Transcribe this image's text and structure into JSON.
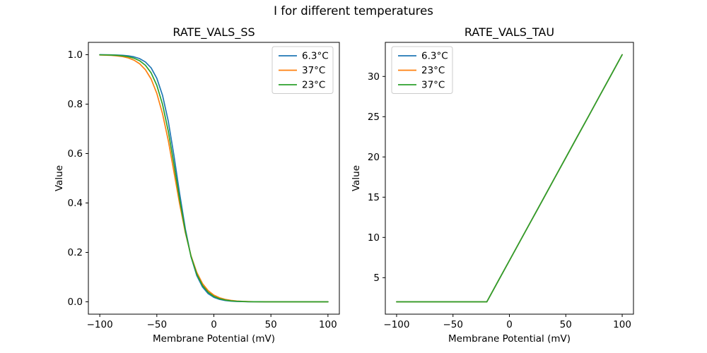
{
  "figure": {
    "suptitle": "I for different temperatures",
    "background": "#ffffff",
    "text_color": "#000000"
  },
  "chart_data": [
    {
      "type": "line",
      "title": "RATE_VALS_SS",
      "xlabel": "Membrane Potential (mV)",
      "ylabel": "Value",
      "xlim": [
        -110,
        110
      ],
      "ylim": [
        -0.05,
        1.05
      ],
      "xticks": [
        -100,
        -50,
        0,
        50,
        100
      ],
      "xtick_labels": [
        "−100",
        "−50",
        "0",
        "50",
        "100"
      ],
      "yticks": [
        0.0,
        0.2,
        0.4,
        0.6,
        0.8,
        1.0
      ],
      "ytick_labels": [
        "0.0",
        "0.2",
        "0.4",
        "0.6",
        "0.8",
        "1.0"
      ],
      "grid": false,
      "legend_position": "upper-right",
      "x": [
        -100,
        -95,
        -90,
        -85,
        -80,
        -75,
        -70,
        -65,
        -60,
        -55,
        -50,
        -45,
        -40,
        -35,
        -30,
        -25,
        -20,
        -15,
        -10,
        -5,
        0,
        5,
        10,
        15,
        20,
        25,
        30,
        35,
        40,
        45,
        50,
        55,
        60,
        65,
        70,
        75,
        80,
        85,
        90,
        95,
        100
      ],
      "series": [
        {
          "name": "6.3°C",
          "color": "#1f77b4",
          "values": [
            1.0,
            0.9996,
            0.9993,
            0.9987,
            0.9975,
            0.9954,
            0.9914,
            0.9841,
            0.9707,
            0.9466,
            0.9047,
            0.8355,
            0.7311,
            0.5927,
            0.4378,
            0.2942,
            0.1824,
            0.1067,
            0.0601,
            0.0331,
            0.018,
            0.0097,
            0.0052,
            0.0028,
            0.0015,
            0.0008,
            0.0004,
            0.0002,
            0.0001,
            0.0001,
            0.0,
            0.0,
            0.0,
            0.0,
            0.0,
            0.0,
            0.0,
            0.0,
            0.0,
            0.0,
            0.0
          ]
        },
        {
          "name": "37°C",
          "color": "#ff7f0e",
          "values": [
            0.999,
            0.9984,
            0.9973,
            0.9954,
            0.9922,
            0.9868,
            0.9779,
            0.9631,
            0.9392,
            0.9013,
            0.8435,
            0.7609,
            0.653,
            0.5263,
            0.3963,
            0.2794,
            0.1864,
            0.1192,
            0.074,
            0.0451,
            0.0272,
            0.0162,
            0.0096,
            0.0057,
            0.0034,
            0.002,
            0.0012,
            0.0007,
            0.0004,
            0.0002,
            0.0001,
            0.0001,
            0.0,
            0.0,
            0.0,
            0.0,
            0.0,
            0.0,
            0.0,
            0.0,
            0.0
          ]
        },
        {
          "name": "23°C",
          "color": "#2ca02c",
          "values": [
            0.9995,
            0.9992,
            0.9986,
            0.9975,
            0.9955,
            0.992,
            0.986,
            0.9753,
            0.9571,
            0.9263,
            0.8759,
            0.7989,
            0.691,
            0.5572,
            0.4146,
            0.285,
            0.1833,
            0.1122,
            0.0663,
            0.0385,
            0.022,
            0.0125,
            0.0071,
            0.004,
            0.0022,
            0.0013,
            0.0007,
            0.0004,
            0.0002,
            0.0001,
            0.0001,
            0.0,
            0.0,
            0.0,
            0.0,
            0.0,
            0.0,
            0.0,
            0.0,
            0.0,
            0.0
          ]
        }
      ]
    },
    {
      "type": "line",
      "title": "RATE_VALS_TAU",
      "xlabel": "Membrane Potential (mV)",
      "ylabel": "Value",
      "xlim": [
        -110,
        110
      ],
      "ylim": [
        0.465,
        34.235
      ],
      "xticks": [
        -100,
        -50,
        0,
        50,
        100
      ],
      "xtick_labels": [
        "−100",
        "−50",
        "0",
        "50",
        "100"
      ],
      "yticks": [
        5,
        10,
        15,
        20,
        25,
        30
      ],
      "ytick_labels": [
        "5",
        "10",
        "15",
        "20",
        "25",
        "30"
      ],
      "grid": false,
      "legend_position": "upper-left",
      "x": [
        -100,
        -90,
        -80,
        -70,
        -60,
        -50,
        -40,
        -30,
        -20,
        -10,
        0,
        10,
        20,
        30,
        40,
        50,
        60,
        70,
        80,
        90,
        100
      ],
      "series": [
        {
          "name": "6.3°C",
          "color": "#1f77b4",
          "values": [
            2.0,
            2.0,
            2.0,
            2.0,
            2.0,
            2.0,
            2.0,
            2.0,
            2.0,
            4.56,
            7.12,
            9.68,
            12.23,
            14.79,
            17.35,
            19.91,
            22.46,
            25.02,
            27.58,
            30.14,
            32.7
          ]
        },
        {
          "name": "23°C",
          "color": "#ff7f0e",
          "values": [
            2.0,
            2.0,
            2.0,
            2.0,
            2.0,
            2.0,
            2.0,
            2.0,
            2.0,
            4.56,
            7.12,
            9.68,
            12.23,
            14.79,
            17.35,
            19.91,
            22.46,
            25.02,
            27.58,
            30.14,
            32.7
          ]
        },
        {
          "name": "37°C",
          "color": "#2ca02c",
          "values": [
            2.0,
            2.0,
            2.0,
            2.0,
            2.0,
            2.0,
            2.0,
            2.0,
            2.0,
            4.56,
            7.12,
            9.68,
            12.23,
            14.79,
            17.35,
            19.91,
            22.46,
            25.02,
            27.58,
            30.14,
            32.7
          ]
        }
      ]
    }
  ]
}
